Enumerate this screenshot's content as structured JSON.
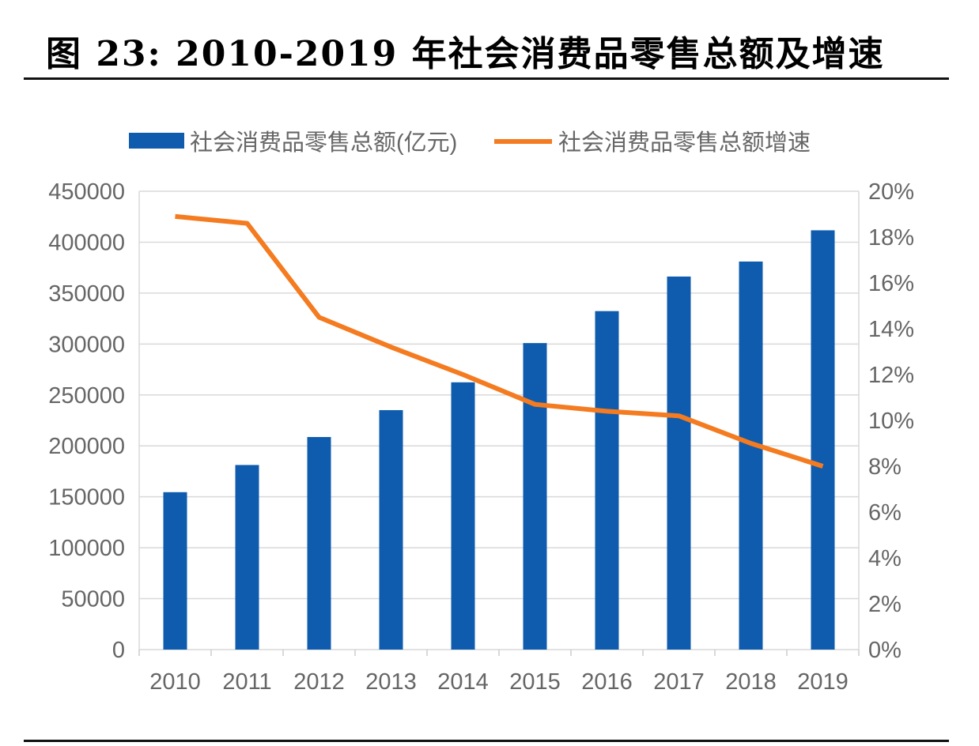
{
  "title": "图  23:  2010-2019 年社会消费品零售总额及增速",
  "chart_data": {
    "type": "bar+line",
    "title": "图  23:  2010-2019 年社会消费品零售总额及增速",
    "categories": [
      "2010",
      "2011",
      "2012",
      "2013",
      "2014",
      "2015",
      "2016",
      "2017",
      "2018",
      "2019"
    ],
    "series": [
      {
        "name": "社会消费品零售总额(亿元)",
        "type": "bar",
        "axis": "left",
        "color": "#0f5cae",
        "values": [
          154554,
          181226,
          208700,
          235100,
          262394,
          300931,
          332316,
          366262,
          380987,
          411649
        ]
      },
      {
        "name": "社会消费品零售总额增速",
        "type": "line",
        "axis": "right",
        "color": "#f47b20",
        "values": [
          18.9,
          18.6,
          14.5,
          13.2,
          12.0,
          10.7,
          10.4,
          10.2,
          9.0,
          8.0
        ]
      }
    ],
    "yleft": {
      "lim": [
        0,
        450000
      ],
      "ticks": [
        "0",
        "50000",
        "100000",
        "150000",
        "200000",
        "250000",
        "300000",
        "350000",
        "400000",
        "450000"
      ]
    },
    "yright": {
      "lim": [
        0,
        20
      ],
      "unit": "%",
      "ticks": [
        "0%",
        "2%",
        "4%",
        "6%",
        "8%",
        "10%",
        "12%",
        "14%",
        "16%",
        "18%",
        "20%"
      ]
    },
    "grid": true,
    "legend": "top"
  }
}
